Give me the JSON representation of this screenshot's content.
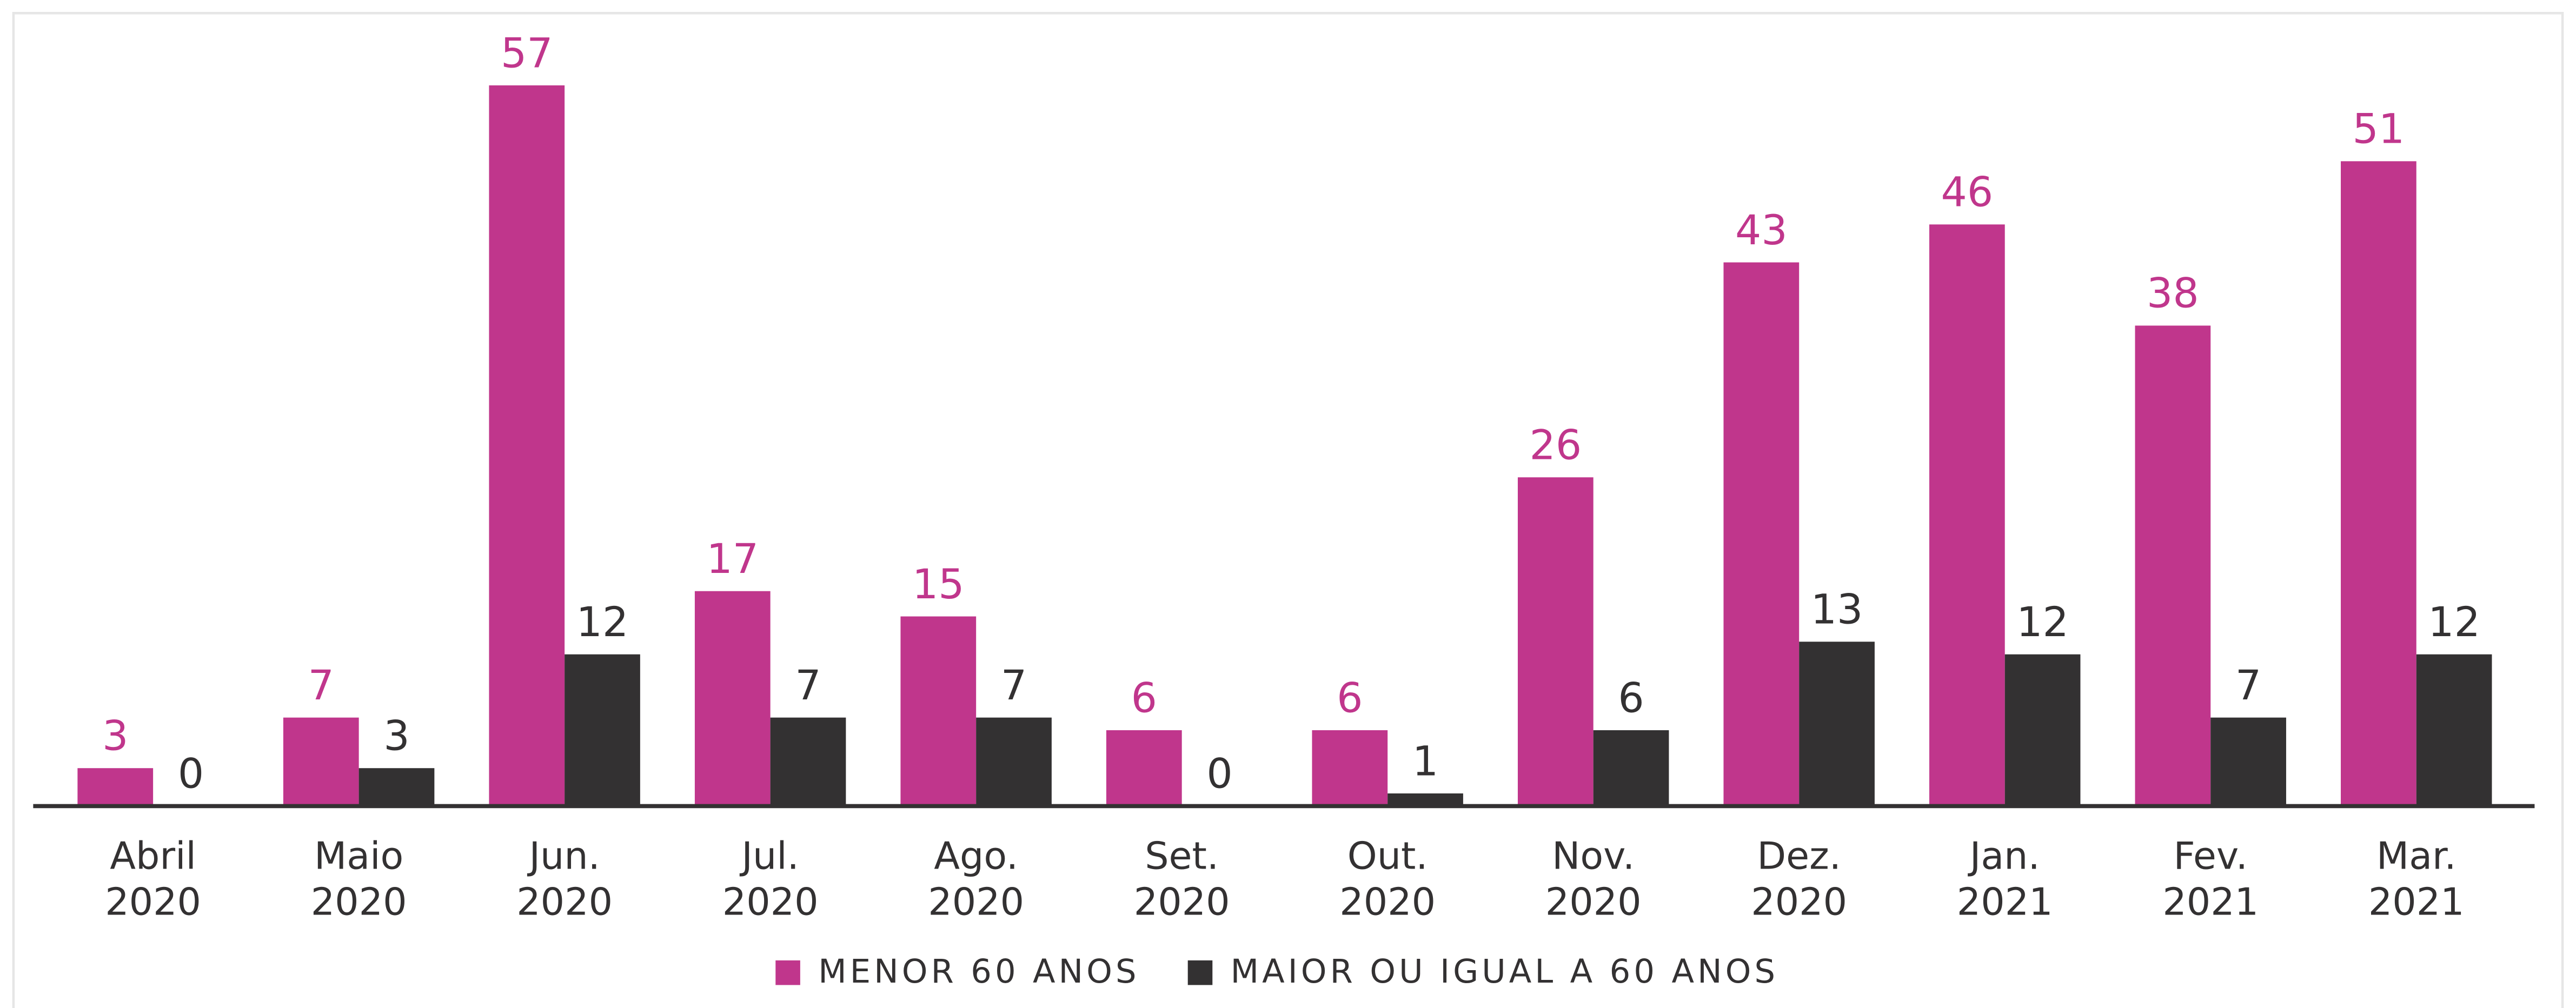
{
  "chart_data": {
    "type": "bar",
    "categories": [
      [
        "Abril",
        "2020"
      ],
      [
        "Maio",
        "2020"
      ],
      [
        "Jun.",
        "2020"
      ],
      [
        "Jul.",
        "2020"
      ],
      [
        "Ago.",
        "2020"
      ],
      [
        "Set.",
        "2020"
      ],
      [
        "Out.",
        "2020"
      ],
      [
        "Nov.",
        "2020"
      ],
      [
        "Dez.",
        "2020"
      ],
      [
        "Jan.",
        "2021"
      ],
      [
        "Fev.",
        "2021"
      ],
      [
        "Mar.",
        "2021"
      ]
    ],
    "series": [
      {
        "name": "MENOR 60 ANOS",
        "color": "#c0368c",
        "values": [
          3,
          7,
          57,
          17,
          15,
          6,
          6,
          26,
          43,
          46,
          38,
          51
        ]
      },
      {
        "name": "MAIOR OU IGUAL A 60 ANOS",
        "color": "#333132",
        "values": [
          0,
          3,
          12,
          7,
          7,
          0,
          1,
          6,
          13,
          12,
          7,
          12
        ]
      }
    ]
  }
}
